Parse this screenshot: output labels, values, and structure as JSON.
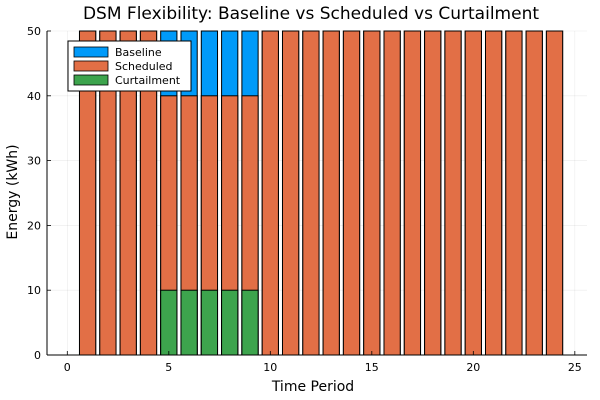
{
  "chart_data": {
    "type": "bar",
    "title": "DSM Flexibility: Baseline vs Scheduled vs Curtailment",
    "xlabel": "Time Period",
    "ylabel": "Energy (kWh)",
    "xlim": [
      -1,
      25.6
    ],
    "ylim": [
      0,
      50
    ],
    "xticks": [
      0,
      5,
      10,
      15,
      20,
      25
    ],
    "yticks": [
      0,
      10,
      20,
      30,
      40,
      50
    ],
    "grid": true,
    "legend_position": "top-left",
    "x": [
      1,
      2,
      3,
      4,
      5,
      6,
      7,
      8,
      9,
      10,
      11,
      12,
      13,
      14,
      15,
      16,
      17,
      18,
      19,
      20,
      21,
      22,
      23,
      24
    ],
    "series": [
      {
        "name": "Baseline",
        "color": "#009af9",
        "values": [
          50,
          50,
          50,
          50,
          50,
          50,
          50,
          50,
          50,
          50,
          50,
          50,
          50,
          50,
          50,
          50,
          50,
          50,
          50,
          50,
          50,
          50,
          50,
          50
        ]
      },
      {
        "name": "Scheduled",
        "color": "#e26f46",
        "values": [
          50,
          50,
          50,
          50,
          40,
          40,
          40,
          40,
          40,
          50,
          50,
          50,
          50,
          50,
          50,
          50,
          50,
          50,
          50,
          50,
          50,
          50,
          50,
          50
        ]
      },
      {
        "name": "Curtailment",
        "color": "#3da44d",
        "values": [
          0,
          0,
          0,
          0,
          10,
          10,
          10,
          10,
          10,
          0,
          0,
          0,
          0,
          0,
          0,
          0,
          0,
          0,
          0,
          0,
          0,
          0,
          0,
          0
        ]
      }
    ]
  }
}
